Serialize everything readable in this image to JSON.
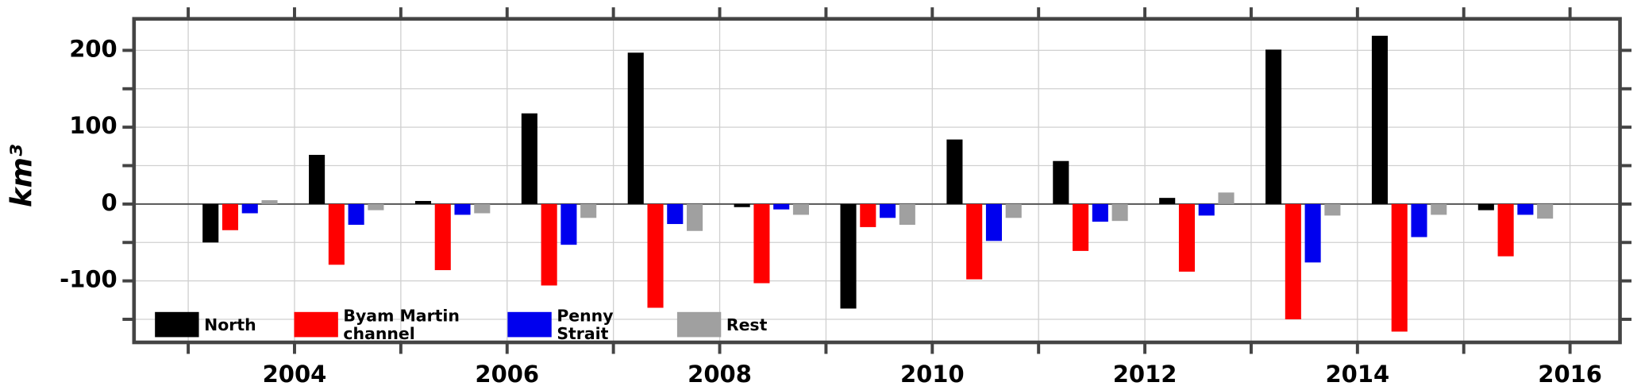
{
  "chart_data": {
    "type": "bar",
    "ylabel": "km³",
    "x": [
      2003,
      2004,
      2005,
      2006,
      2007,
      2008,
      2009,
      2010,
      2011,
      2012,
      2013,
      2014,
      2015
    ],
    "series": [
      {
        "name": "North",
        "color": "#000000",
        "values": [
          -50,
          64,
          4,
          118,
          197,
          -4,
          -136,
          84,
          56,
          8,
          201,
          219,
          -8
        ]
      },
      {
        "name": "Byam Martin\nchannel",
        "color": "#ff0000",
        "values": [
          -34,
          -79,
          -86,
          -106,
          -135,
          -103,
          -30,
          -98,
          -61,
          -88,
          -150,
          -166,
          -68
        ]
      },
      {
        "name": "Penny\nStrait",
        "color": "#0000ee",
        "values": [
          -12,
          -27,
          -14,
          -53,
          -26,
          -7,
          -18,
          -48,
          -23,
          -15,
          -76,
          -43,
          -14
        ]
      },
      {
        "name": "Rest",
        "color": "#a0a0a0",
        "values": [
          5,
          -8,
          -12,
          -18,
          -35,
          -14,
          -27,
          -18,
          -22,
          15,
          -15,
          -14,
          -19
        ]
      }
    ],
    "xlim": [
      2002.49,
      2016.47
    ],
    "xticks": [
      2004,
      2006,
      2008,
      2010,
      2012,
      2014,
      2016
    ],
    "xminorticks": [
      2003,
      2005,
      2007,
      2009,
      2011,
      2013,
      2015
    ],
    "ylim": [
      -180,
      241
    ],
    "yticks": [
      -100,
      0,
      100,
      200
    ],
    "yminorticks": [
      -150,
      -50,
      50,
      150
    ],
    "grid": true,
    "legend": "lower left"
  }
}
